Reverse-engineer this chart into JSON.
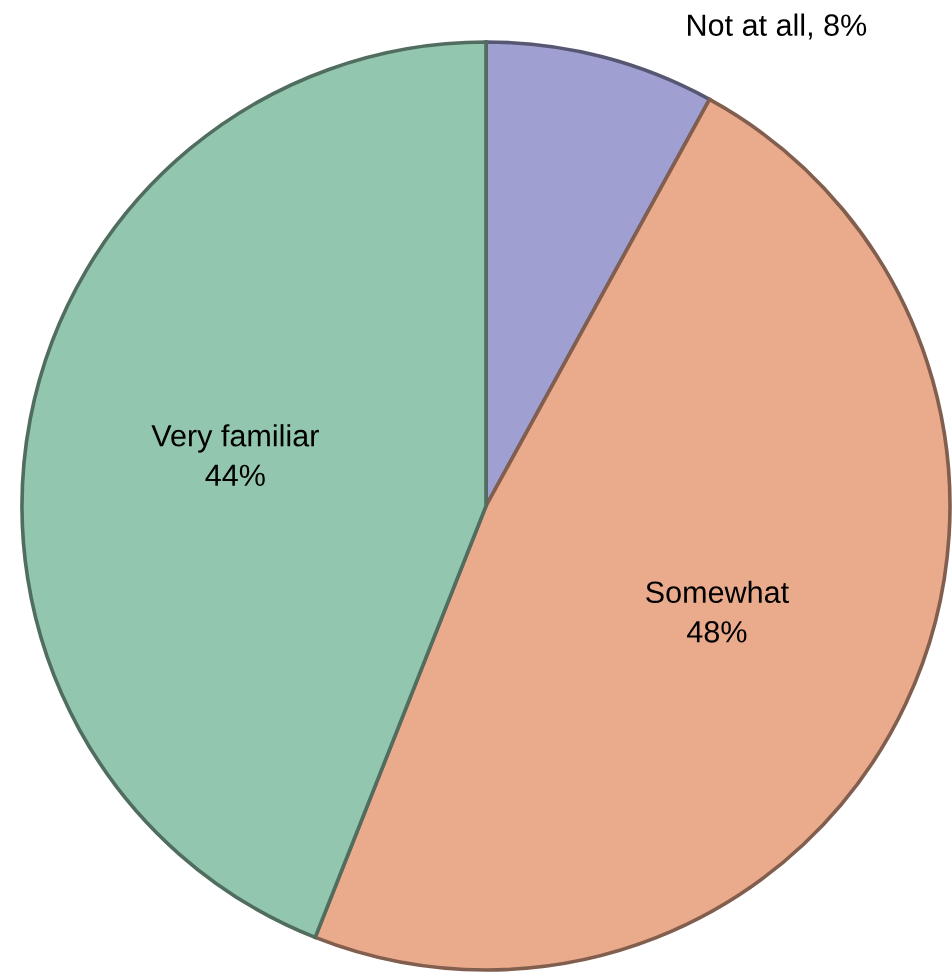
{
  "chart_data": {
    "type": "pie",
    "categories": [
      "Not at all",
      "Somewhat",
      "Very familiar"
    ],
    "values": [
      8,
      48,
      44
    ],
    "colors": [
      "#9f9fd2",
      "#eaaa8c",
      "#92c6ae"
    ],
    "value_labels": [
      "8%",
      "48%",
      "44%"
    ],
    "legend": false
  }
}
